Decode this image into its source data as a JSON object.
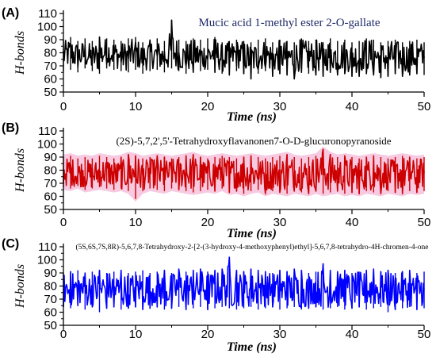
{
  "chart_data": [
    {
      "type": "line",
      "panel_label": "(A)",
      "title": "Mucic acid 1-methyl ester 2-O-gallate",
      "xlabel": "Time (ns)",
      "ylabel": "H-bonds",
      "xlim": [
        0,
        50
      ],
      "ylim": [
        50,
        110
      ],
      "x_ticks": [
        "0",
        "10",
        "20",
        "30",
        "40",
        "50"
      ],
      "y_ticks": [
        "50",
        "60",
        "70",
        "80",
        "90",
        "100",
        "110"
      ],
      "grid": false,
      "color": "#000000",
      "series": [
        {
          "x": [
            0,
            1,
            2,
            3,
            4,
            5,
            6,
            7,
            8,
            9,
            10,
            11,
            12,
            13,
            14,
            15,
            16,
            17,
            18,
            19,
            20,
            21,
            22,
            23,
            24,
            25,
            26,
            27,
            28,
            29,
            30,
            31,
            32,
            33,
            34,
            35,
            36,
            37,
            38,
            39,
            40,
            41,
            42,
            43,
            44,
            45,
            46,
            47,
            48,
            49,
            50
          ],
          "values": [
            78,
            80,
            77,
            79,
            76,
            78,
            81,
            79,
            77,
            78,
            80,
            76,
            79,
            78,
            77,
            82,
            78,
            76,
            79,
            77,
            78,
            80,
            76,
            77,
            79,
            78,
            75,
            77,
            79,
            76,
            78,
            77,
            76,
            79,
            77,
            78,
            76,
            79,
            77,
            78,
            76,
            77,
            79,
            78,
            76,
            77,
            78,
            76,
            77,
            78,
            76
          ],
          "min": [
            66,
            67,
            65,
            68,
            66,
            64,
            68,
            67,
            66,
            65,
            67,
            64,
            66,
            67,
            65,
            68,
            66,
            64,
            65,
            66,
            67,
            65,
            64,
            63,
            66,
            64,
            60,
            64,
            66,
            62,
            64,
            63,
            60,
            65,
            64,
            63,
            62,
            65,
            63,
            64,
            62,
            62,
            64,
            63,
            61,
            62,
            64,
            62,
            63,
            64,
            63
          ],
          "max": [
            90,
            92,
            89,
            91,
            89,
            92,
            91,
            90,
            89,
            91,
            92,
            88,
            90,
            91,
            89,
            105,
            90,
            89,
            91,
            90,
            91,
            92,
            88,
            89,
            90,
            89,
            88,
            90,
            91,
            88,
            90,
            89,
            88,
            91,
            89,
            90,
            88,
            91,
            89,
            90,
            88,
            89,
            91,
            90,
            88,
            89,
            90,
            88,
            89,
            90,
            88
          ]
        }
      ]
    },
    {
      "type": "line",
      "panel_label": "(B)",
      "title": "(2S)-5,7,2',5'-Tetrahydroxyflavanonen7-O-D-glucuronopyranoside",
      "xlabel": "Time (ns)",
      "ylabel": "H-bonds",
      "xlim": [
        0,
        50
      ],
      "ylim": [
        50,
        110
      ],
      "x_ticks": [
        "0",
        "10",
        "20",
        "30",
        "40",
        "50"
      ],
      "y_ticks": [
        "50",
        "60",
        "70",
        "80",
        "90",
        "100",
        "110"
      ],
      "grid": false,
      "color": "#cc0000",
      "band_color": "#f4b8d8",
      "series": [
        {
          "x": [
            0,
            1,
            2,
            3,
            4,
            5,
            6,
            7,
            8,
            9,
            10,
            11,
            12,
            13,
            14,
            15,
            16,
            17,
            18,
            19,
            20,
            21,
            22,
            23,
            24,
            25,
            26,
            27,
            28,
            29,
            30,
            31,
            32,
            33,
            34,
            35,
            36,
            37,
            38,
            39,
            40,
            41,
            42,
            43,
            44,
            45,
            46,
            47,
            48,
            49,
            50
          ],
          "values": [
            78,
            79,
            77,
            78,
            76,
            78,
            79,
            77,
            76,
            78,
            77,
            76,
            78,
            77,
            76,
            78,
            79,
            77,
            78,
            76,
            77,
            78,
            79,
            77,
            78,
            76,
            77,
            78,
            76,
            77,
            78,
            77,
            79,
            76,
            77,
            78,
            80,
            77,
            78,
            76,
            77,
            78,
            76,
            77,
            78,
            76,
            77,
            78,
            76,
            77,
            78
          ],
          "min": [
            67,
            66,
            68,
            65,
            66,
            67,
            66,
            65,
            66,
            64,
            58,
            64,
            66,
            65,
            64,
            66,
            65,
            64,
            63,
            64,
            65,
            64,
            66,
            63,
            64,
            62,
            64,
            65,
            62,
            64,
            63,
            62,
            64,
            63,
            62,
            64,
            62,
            63,
            64,
            62,
            63,
            62,
            64,
            63,
            62,
            64,
            63,
            62,
            64,
            63,
            64
          ],
          "max": [
            90,
            91,
            89,
            90,
            89,
            91,
            90,
            89,
            90,
            92,
            91,
            89,
            90,
            91,
            90,
            89,
            90,
            91,
            92,
            90,
            89,
            90,
            91,
            90,
            89,
            90,
            91,
            90,
            89,
            90,
            91,
            92,
            90,
            89,
            90,
            91,
            96,
            92,
            90,
            91,
            90,
            89,
            90,
            91,
            90,
            89,
            90,
            91,
            90,
            89,
            90
          ]
        }
      ]
    },
    {
      "type": "line",
      "panel_label": "(C)",
      "title": "(5S,6S,7S,8R)-5,6,7,8-Tetrahydroxy-2-[2-(3-hydroxy-4-methoxyphenyl)ethyl]-5,6,7,8-tetrahydro-4H-chromen-4-one",
      "xlabel": "Time (ns)",
      "ylabel": "H-bonds",
      "xlim": [
        0,
        50
      ],
      "ylim": [
        50,
        110
      ],
      "x_ticks": [
        "0",
        "10",
        "20",
        "30",
        "40",
        "50"
      ],
      "y_ticks": [
        "50",
        "60",
        "70",
        "80",
        "90",
        "100",
        "110"
      ],
      "grid": false,
      "color": "#0000ff",
      "series": [
        {
          "x": [
            0,
            1,
            2,
            3,
            4,
            5,
            6,
            7,
            8,
            9,
            10,
            11,
            12,
            13,
            14,
            15,
            16,
            17,
            18,
            19,
            20,
            21,
            22,
            23,
            24,
            25,
            26,
            27,
            28,
            29,
            30,
            31,
            32,
            33,
            34,
            35,
            36,
            37,
            38,
            39,
            40,
            41,
            42,
            43,
            44,
            45,
            46,
            47,
            48,
            49,
            50
          ],
          "values": [
            78,
            77,
            79,
            76,
            78,
            77,
            79,
            78,
            76,
            77,
            78,
            79,
            77,
            78,
            76,
            77,
            79,
            78,
            77,
            79,
            78,
            77,
            79,
            80,
            78,
            77,
            76,
            78,
            77,
            79,
            76,
            77,
            78,
            76,
            77,
            79,
            78,
            77,
            76,
            78,
            77,
            79,
            77,
            78,
            76,
            77,
            78,
            77,
            76,
            78,
            77
          ],
          "min": [
            64,
            63,
            65,
            62,
            64,
            60,
            63,
            64,
            62,
            63,
            64,
            62,
            63,
            64,
            62,
            63,
            64,
            62,
            63,
            64,
            62,
            63,
            64,
            63,
            62,
            63,
            64,
            62,
            63,
            64,
            62,
            63,
            64,
            62,
            63,
            64,
            62,
            63,
            64,
            62,
            63,
            64,
            62,
            63,
            64,
            60,
            62,
            63,
            64,
            62,
            63
          ],
          "max": [
            90,
            91,
            92,
            90,
            91,
            92,
            90,
            91,
            92,
            90,
            91,
            92,
            90,
            91,
            92,
            90,
            93,
            91,
            92,
            93,
            91,
            92,
            93,
            102,
            92,
            91,
            93,
            92,
            91,
            90,
            92,
            91,
            93,
            92,
            90,
            91,
            97,
            92,
            91,
            92,
            90,
            91,
            92,
            93,
            91,
            92,
            90,
            91,
            92,
            90,
            91
          ]
        }
      ]
    }
  ]
}
